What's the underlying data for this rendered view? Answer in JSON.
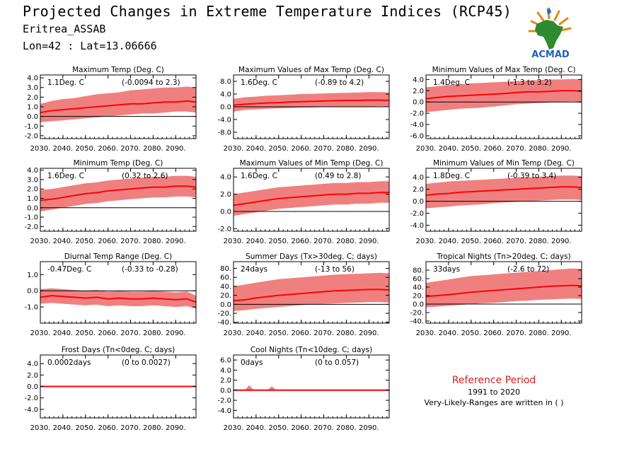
{
  "header": {
    "title": "Projected Changes in Extreme Temperature Indices (RCP45)",
    "station": "Eritrea_ASSAB",
    "location": "Lon=42 : Lat=13.06666"
  },
  "logo": {
    "text": "ACMAD",
    "icon": "africa-map-logo"
  },
  "reference": {
    "title": "Reference Period",
    "period": "1991 to 2020",
    "note": "Very-Likely-Ranges are written in ( )"
  },
  "colors": {
    "band": "#f08080",
    "line": "#ff0000",
    "zero": "#000000"
  },
  "chart_data": [
    {
      "type": "area",
      "title": "Maximum Temp (Deg. C)",
      "value_label": "1.1Deg. C",
      "range_label": "(-0.0094 to 2.3)",
      "x_range": [
        2030,
        2099
      ],
      "ylim": [
        -2.3,
        4.3
      ],
      "yticks": [
        -2.0,
        -1.0,
        0.0,
        1.0,
        2.0,
        3.0,
        4.0
      ],
      "ytick_labels": [
        "-2.0",
        "-1.0",
        "0.0",
        "1.0",
        "2.0",
        "3.0",
        "4.0"
      ],
      "xtick_labels": [
        "2030.",
        "2040.",
        "2050.",
        "2060.",
        "2070.",
        "2080.",
        "2090."
      ],
      "x": [
        2030,
        2035,
        2040,
        2045,
        2050,
        2055,
        2060,
        2065,
        2070,
        2075,
        2080,
        2085,
        2090,
        2095,
        2099
      ],
      "series": [
        {
          "values": [
            0.4,
            0.6,
            0.7,
            0.8,
            0.9,
            1.0,
            1.1,
            1.2,
            1.3,
            1.3,
            1.4,
            1.5,
            1.5,
            1.6,
            1.5
          ]
        },
        {
          "values": [
            -0.6,
            -0.5,
            -0.4,
            -0.3,
            -0.2,
            -0.1,
            0.0,
            0.1,
            0.2,
            0.3,
            0.3,
            0.4,
            0.5,
            0.5,
            0.4
          ]
        },
        {
          "values": [
            1.3,
            1.6,
            1.8,
            1.9,
            2.1,
            2.3,
            2.4,
            2.5,
            2.7,
            2.8,
            2.9,
            3.0,
            3.0,
            3.1,
            3.0
          ]
        }
      ]
    },
    {
      "type": "area",
      "title": "Maximum Values of Max Temp (Deg. C)",
      "value_label": "1.6Deg. C",
      "range_label": "(-0.89 to 4.2)",
      "x_range": [
        2030,
        2099
      ],
      "ylim": [
        -10,
        10
      ],
      "yticks": [
        -8,
        -4,
        0,
        4,
        8
      ],
      "ytick_labels": [
        "-8.0",
        "-4.0",
        "0.0",
        "4.0",
        "8.0"
      ],
      "xtick_labels": [
        "2030.",
        "2040.",
        "2050.",
        "2060.",
        "2070.",
        "2080.",
        "2090."
      ],
      "x": [
        2030,
        2035,
        2040,
        2045,
        2050,
        2055,
        2060,
        2065,
        2070,
        2075,
        2080,
        2085,
        2090,
        2095,
        2099
      ],
      "series": [
        {
          "values": [
            0.5,
            0.8,
            1.0,
            1.2,
            1.3,
            1.5,
            1.6,
            1.7,
            1.8,
            1.9,
            2.0,
            2.0,
            2.1,
            2.1,
            2.0
          ]
        },
        {
          "values": [
            -1.5,
            -1.0,
            -0.8,
            -0.6,
            -0.5,
            -0.4,
            -0.3,
            -0.2,
            -0.1,
            0.0,
            0.0,
            0.1,
            0.1,
            0.2,
            0.1
          ]
        },
        {
          "values": [
            2.5,
            3.0,
            3.2,
            3.5,
            3.6,
            3.8,
            4.0,
            4.1,
            4.2,
            4.3,
            4.4,
            4.5,
            4.6,
            4.6,
            4.5
          ]
        }
      ]
    },
    {
      "type": "area",
      "title": "Minimum Values of Max Temp (Deg. C)",
      "value_label": "1.4Deg. C",
      "range_label": "(-1.3 to 3.2)",
      "x_range": [
        2030,
        2099
      ],
      "ylim": [
        -6.5,
        4.8
      ],
      "yticks": [
        -6,
        -4,
        -2,
        0,
        2,
        4
      ],
      "ytick_labels": [
        "-6.0",
        "-4.0",
        "-2.0",
        "0.0",
        "2.0",
        "4.0"
      ],
      "xtick_labels": [
        "2030.",
        "2040.",
        "2050.",
        "2060.",
        "2070.",
        "2080.",
        "2090."
      ],
      "x": [
        2030,
        2035,
        2040,
        2045,
        2050,
        2055,
        2060,
        2065,
        2070,
        2075,
        2080,
        2085,
        2090,
        2095,
        2099
      ],
      "series": [
        {
          "values": [
            0.6,
            0.8,
            1.0,
            1.1,
            1.2,
            1.3,
            1.4,
            1.5,
            1.7,
            1.8,
            1.8,
            1.9,
            2.0,
            2.0,
            1.9
          ]
        },
        {
          "values": [
            -1.8,
            -1.6,
            -1.4,
            -1.2,
            -1.1,
            -1.0,
            -0.8,
            -0.6,
            -0.4,
            -0.3,
            -0.2,
            -0.1,
            0.0,
            0.1,
            0.0
          ]
        },
        {
          "values": [
            2.6,
            2.8,
            3.0,
            3.1,
            3.3,
            3.4,
            3.5,
            3.6,
            3.7,
            3.8,
            3.9,
            4.0,
            4.0,
            4.1,
            4.0
          ]
        }
      ]
    },
    {
      "type": "area",
      "title": "Minimum Temp (Deg. C)",
      "value_label": "1.6Deg. C",
      "range_label": "(0.32 to 2.6)",
      "x_range": [
        2030,
        2099
      ],
      "ylim": [
        -2.5,
        4.2
      ],
      "yticks": [
        -2.0,
        -1.0,
        0.0,
        1.0,
        2.0,
        3.0,
        4.0
      ],
      "ytick_labels": [
        "-2.0",
        "-1.0",
        "0.0",
        "1.0",
        "2.0",
        "3.0",
        "4.0"
      ],
      "xtick_labels": [
        "2030.",
        "2040.",
        "2050.",
        "2060.",
        "2070.",
        "2080.",
        "2090."
      ],
      "x": [
        2030,
        2035,
        2040,
        2045,
        2050,
        2055,
        2060,
        2065,
        2070,
        2075,
        2080,
        2085,
        2090,
        2095,
        2099
      ],
      "series": [
        {
          "values": [
            0.8,
            0.9,
            1.1,
            1.3,
            1.5,
            1.6,
            1.8,
            1.9,
            2.0,
            2.1,
            2.2,
            2.2,
            2.3,
            2.3,
            2.2
          ]
        },
        {
          "values": [
            -0.4,
            -0.2,
            0.0,
            0.2,
            0.4,
            0.5,
            0.7,
            0.8,
            0.9,
            1.0,
            1.1,
            1.1,
            1.2,
            1.2,
            1.1
          ]
        },
        {
          "values": [
            1.9,
            2.0,
            2.2,
            2.4,
            2.6,
            2.7,
            2.9,
            3.0,
            3.1,
            3.2,
            3.3,
            3.3,
            3.4,
            3.4,
            3.3
          ]
        }
      ]
    },
    {
      "type": "area",
      "title": "Maximum Values of Min Temp (Deg. C)",
      "value_label": "1.6Deg. C",
      "range_label": "(0.49 to 2.8)",
      "x_range": [
        2030,
        2099
      ],
      "ylim": [
        -2.3,
        5.0
      ],
      "yticks": [
        -2,
        0,
        2,
        4
      ],
      "ytick_labels": [
        "-2.0",
        "0.0",
        "2.0",
        "4.0"
      ],
      "xtick_labels": [
        "2030.",
        "2040.",
        "2050.",
        "2060.",
        "2070.",
        "2080.",
        "2090."
      ],
      "x": [
        2030,
        2035,
        2040,
        2045,
        2050,
        2055,
        2060,
        2065,
        2070,
        2075,
        2080,
        2085,
        2090,
        2095,
        2099
      ],
      "series": [
        {
          "values": [
            0.7,
            0.9,
            1.1,
            1.3,
            1.5,
            1.6,
            1.7,
            1.8,
            1.9,
            2.0,
            2.0,
            2.1,
            2.1,
            2.2,
            2.2
          ]
        },
        {
          "values": [
            -0.5,
            -0.3,
            -0.1,
            0.1,
            0.3,
            0.4,
            0.5,
            0.6,
            0.7,
            0.8,
            0.8,
            0.9,
            0.9,
            1.0,
            1.0
          ]
        },
        {
          "values": [
            2.0,
            2.2,
            2.4,
            2.6,
            2.8,
            2.9,
            3.0,
            3.1,
            3.2,
            3.3,
            3.3,
            3.4,
            3.4,
            3.5,
            3.5
          ]
        }
      ]
    },
    {
      "type": "area",
      "title": "Minimum Values of Min Temp (Deg. C)",
      "value_label": "1.8Deg. C",
      "range_label": "(-0.39 to 3.4)",
      "x_range": [
        2030,
        2099
      ],
      "ylim": [
        -5.0,
        5.5
      ],
      "yticks": [
        -4,
        -2,
        0,
        2,
        4
      ],
      "ytick_labels": [
        "-4.0",
        "-2.0",
        "0.0",
        "2.0",
        "4.0"
      ],
      "xtick_labels": [
        "2030.",
        "2040.",
        "2050.",
        "2060.",
        "2070.",
        "2080.",
        "2090."
      ],
      "x": [
        2030,
        2035,
        2040,
        2045,
        2050,
        2055,
        2060,
        2065,
        2070,
        2075,
        2080,
        2085,
        2090,
        2095,
        2099
      ],
      "series": [
        {
          "values": [
            1.0,
            1.2,
            1.3,
            1.5,
            1.6,
            1.7,
            1.8,
            1.9,
            2.0,
            2.1,
            2.2,
            2.3,
            2.4,
            2.4,
            2.3
          ]
        },
        {
          "values": [
            -1.2,
            -1.0,
            -0.9,
            -0.7,
            -0.6,
            -0.5,
            -0.3,
            -0.2,
            -0.1,
            0.0,
            0.1,
            0.2,
            0.3,
            0.3,
            0.2
          ]
        },
        {
          "values": [
            2.9,
            3.1,
            3.3,
            3.4,
            3.5,
            3.6,
            3.7,
            3.8,
            3.9,
            4.0,
            4.1,
            4.2,
            4.3,
            4.3,
            4.2
          ]
        }
      ]
    },
    {
      "type": "area",
      "title": "Diurnal Temp Range (Deg. C)",
      "value_label": "-0.47Deg. C",
      "range_label": "(-0.33 to -0.28)",
      "x_range": [
        2030,
        2099
      ],
      "ylim": [
        -2.0,
        1.8
      ],
      "yticks": [
        -1.0,
        0.0,
        1.0
      ],
      "ytick_labels": [
        "-1.0",
        "0.0",
        "1.0"
      ],
      "xtick_labels": [
        "2030.",
        "2040.",
        "2050.",
        "2060.",
        "2070.",
        "2080.",
        "2090."
      ],
      "x": [
        2030,
        2035,
        2040,
        2045,
        2050,
        2055,
        2060,
        2065,
        2070,
        2075,
        2080,
        2085,
        2090,
        2095,
        2099
      ],
      "series": [
        {
          "values": [
            -0.4,
            -0.3,
            -0.35,
            -0.4,
            -0.45,
            -0.4,
            -0.5,
            -0.45,
            -0.5,
            -0.5,
            -0.45,
            -0.5,
            -0.55,
            -0.5,
            -0.7
          ]
        },
        {
          "values": [
            -0.8,
            -0.75,
            -0.8,
            -0.85,
            -0.9,
            -0.85,
            -0.95,
            -0.9,
            -0.95,
            -0.95,
            -0.9,
            -0.95,
            -1.0,
            -0.95,
            -1.1
          ]
        },
        {
          "values": [
            0.1,
            0.15,
            0.1,
            0.05,
            0.0,
            0.05,
            -0.05,
            0.0,
            -0.05,
            -0.05,
            0.0,
            -0.05,
            -0.1,
            -0.05,
            -0.3
          ]
        }
      ]
    },
    {
      "type": "area",
      "title": "Summer Days (Tx>30deg. C; days)",
      "value_label": "24days",
      "range_label": "(-13 to 56)",
      "x_range": [
        2030,
        2099
      ],
      "ylim": [
        -42,
        95
      ],
      "yticks": [
        -40,
        -20,
        0,
        20,
        40,
        60,
        80
      ],
      "ytick_labels": [
        "-40.",
        "-20.",
        "0.0",
        "20.",
        "40.",
        "60.",
        "80."
      ],
      "xtick_labels": [
        "2030.",
        "2040.",
        "2050.",
        "2060.",
        "2070.",
        "2080.",
        "2090."
      ],
      "x": [
        2030,
        2035,
        2040,
        2045,
        2050,
        2055,
        2060,
        2065,
        2070,
        2075,
        2080,
        2085,
        2090,
        2095,
        2099
      ],
      "series": [
        {
          "values": [
            8,
            10,
            14,
            17,
            20,
            22,
            24,
            26,
            28,
            30,
            31,
            32,
            33,
            33,
            32
          ]
        },
        {
          "values": [
            -15,
            -13,
            -10,
            -8,
            -6,
            -4,
            -2,
            0,
            1,
            2,
            3,
            4,
            5,
            5,
            4
          ]
        },
        {
          "values": [
            40,
            44,
            48,
            52,
            56,
            58,
            60,
            62,
            64,
            66,
            67,
            68,
            69,
            70,
            69
          ]
        }
      ]
    },
    {
      "type": "area",
      "title": "Tropical Nights (Tn>20deg. C; days)",
      "value_label": "33days",
      "range_label": "(-2.6 to 72)",
      "x_range": [
        2030,
        2099
      ],
      "ylim": [
        -45,
        100
      ],
      "yticks": [
        -40,
        -20,
        0,
        20,
        40,
        60,
        80
      ],
      "ytick_labels": [
        "-40.",
        "-20.",
        "0.0",
        "20.",
        "40.",
        "60.",
        "80."
      ],
      "xtick_labels": [
        "2030.",
        "2040.",
        "2050.",
        "2060.",
        "2070.",
        "2080.",
        "2090."
      ],
      "x": [
        2030,
        2035,
        2040,
        2045,
        2050,
        2055,
        2060,
        2065,
        2070,
        2075,
        2080,
        2085,
        2090,
        2095,
        2099
      ],
      "series": [
        {
          "values": [
            18,
            20,
            22,
            25,
            28,
            30,
            32,
            34,
            36,
            38,
            40,
            42,
            43,
            44,
            43
          ]
        },
        {
          "values": [
            -8,
            -6,
            -4,
            -2,
            0,
            2,
            3,
            5,
            7,
            8,
            10,
            11,
            12,
            13,
            12
          ]
        },
        {
          "values": [
            50,
            54,
            58,
            62,
            66,
            68,
            70,
            72,
            74,
            76,
            78,
            80,
            82,
            84,
            83
          ]
        }
      ]
    },
    {
      "type": "area",
      "title": "Frost Days (Tn<0deg. C; days)",
      "value_label": "0.0002days",
      "range_label": "(0 to 0.0027)",
      "x_range": [
        2030,
        2099
      ],
      "ylim": [
        -5.5,
        5.5
      ],
      "yticks": [
        -4,
        -2,
        0,
        2,
        4
      ],
      "ytick_labels": [
        "-4.0",
        "-2.0",
        "0.0",
        "2.0",
        "4.0"
      ],
      "xtick_labels": [
        "2030.",
        "2040.",
        "2050.",
        "2060.",
        "2070.",
        "2080.",
        "2090."
      ],
      "x": [
        2030,
        2099
      ],
      "series": [
        {
          "values": [
            0.0,
            0.0
          ]
        },
        {
          "values": [
            0.0,
            0.0
          ]
        },
        {
          "values": [
            0.0,
            0.0
          ]
        }
      ]
    },
    {
      "type": "area",
      "title": "Cool Nights (Tn<10deg. C; days)",
      "value_label": "0days",
      "range_label": "(0 to 0.057)",
      "x_range": [
        2030,
        2099
      ],
      "ylim": [
        -5.5,
        7.0
      ],
      "yticks": [
        -4,
        -2,
        0,
        2,
        4,
        6
      ],
      "ytick_labels": [
        "-4.0",
        "-2.0",
        "0.0",
        "2.0",
        "4.0",
        "6.0"
      ],
      "xtick_labels": [
        "2030.",
        "2040.",
        "2050.",
        "2060.",
        "2070.",
        "2080.",
        "2090."
      ],
      "x": [
        2030,
        2035,
        2037,
        2039,
        2045,
        2047,
        2049,
        2055,
        2099
      ],
      "series": [
        {
          "values": [
            0,
            0,
            0,
            0,
            0,
            0,
            0,
            0,
            0
          ]
        },
        {
          "values": [
            0,
            0,
            0,
            0,
            0,
            0,
            0,
            0,
            0
          ]
        },
        {
          "values": [
            0,
            0,
            1.0,
            0,
            0,
            0.8,
            0,
            0,
            0
          ]
        }
      ]
    }
  ]
}
